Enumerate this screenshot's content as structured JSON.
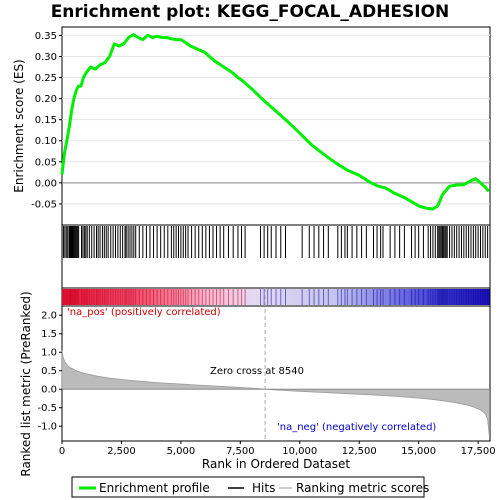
{
  "chart_data": {
    "type": "line",
    "title": "Enrichment plot: KEGG_FOCAL_ADHESION",
    "xlabel": "Rank in Ordered Dataset",
    "xlim": [
      0,
      18000
    ],
    "x_ticks": [
      0,
      2500,
      5000,
      7500,
      10000,
      12500,
      15000,
      17500
    ],
    "x_tick_labels": [
      "0",
      "2,500",
      "5,000",
      "7,500",
      "10,000",
      "12,500",
      "15,000",
      "17,500"
    ],
    "enrichment_panel": {
      "ylabel": "Enrichment score (ES)",
      "ylim": [
        -0.1,
        0.37
      ],
      "y_ticks": [
        -0.05,
        0.0,
        0.05,
        0.1,
        0.15,
        0.2,
        0.25,
        0.3,
        0.35
      ],
      "y_tick_labels": [
        "-0.05",
        "0.00",
        "0.05",
        "0.10",
        "0.15",
        "0.20",
        "0.25",
        "0.30",
        "0.35"
      ],
      "series": [
        {
          "name": "Enrichment profile",
          "color": "#00ee00",
          "x": [
            0,
            100,
            200,
            300,
            400,
            500,
            600,
            700,
            800,
            900,
            1000,
            1200,
            1400,
            1600,
            1800,
            2000,
            2200,
            2400,
            2600,
            2800,
            3000,
            3200,
            3400,
            3600,
            3800,
            4000,
            4200,
            4400,
            4600,
            4800,
            5000,
            5200,
            5400,
            5600,
            5800,
            6000,
            6200,
            6400,
            6600,
            6800,
            7000,
            7200,
            7400,
            7600,
            7800,
            8000,
            8500,
            9000,
            9500,
            10000,
            10500,
            11000,
            11500,
            12000,
            12500,
            13000,
            13300,
            13600,
            14000,
            14400,
            14800,
            15000,
            15300,
            15600,
            15800,
            16000,
            16300,
            16600,
            16900,
            17200,
            17400,
            17600,
            17800,
            17950
          ],
          "y": [
            0.02,
            0.07,
            0.1,
            0.13,
            0.17,
            0.2,
            0.22,
            0.23,
            0.23,
            0.25,
            0.26,
            0.275,
            0.27,
            0.28,
            0.285,
            0.3,
            0.33,
            0.325,
            0.33,
            0.345,
            0.352,
            0.345,
            0.34,
            0.35,
            0.345,
            0.348,
            0.345,
            0.345,
            0.342,
            0.34,
            0.34,
            0.333,
            0.325,
            0.32,
            0.315,
            0.31,
            0.3,
            0.29,
            0.283,
            0.275,
            0.268,
            0.26,
            0.25,
            0.242,
            0.232,
            0.222,
            0.195,
            0.17,
            0.145,
            0.118,
            0.09,
            0.068,
            0.048,
            0.03,
            0.018,
            0.0,
            -0.008,
            -0.012,
            -0.025,
            -0.035,
            -0.048,
            -0.055,
            -0.06,
            -0.062,
            -0.055,
            -0.028,
            -0.008,
            -0.005,
            -0.004,
            0.005,
            0.01,
            0.0,
            -0.01,
            -0.02
          ]
        }
      ]
    },
    "hits": {
      "name": "Hits",
      "color": "#000000",
      "positions": [
        60,
        120,
        180,
        240,
        300,
        330,
        360,
        390,
        420,
        460,
        500,
        540,
        580,
        620,
        660,
        700,
        820,
        880,
        940,
        1000,
        1060,
        1150,
        1250,
        1350,
        1450,
        1520,
        1600,
        1700,
        1780,
        1860,
        1940,
        2050,
        2150,
        2250,
        2350,
        2450,
        2550,
        2650,
        2700,
        2780,
        2860,
        2940,
        3020,
        3100,
        3250,
        3400,
        3550,
        3700,
        3850,
        4000,
        4150,
        4300,
        4450,
        4600,
        4700,
        4800,
        4900,
        5000,
        5100,
        5200,
        5300,
        5450,
        5600,
        5750,
        5900,
        6050,
        6200,
        6350,
        6500,
        6650,
        6800,
        7000,
        7200,
        7400,
        7550,
        7700,
        8350,
        8500,
        8650,
        8800,
        9000,
        9200,
        9400,
        10100,
        10400,
        10600,
        10800,
        11000,
        11200,
        11600,
        11750,
        11900,
        12000,
        12200,
        12400,
        12600,
        12800,
        13100,
        13250,
        13400,
        13500,
        13800,
        14000,
        14200,
        14400,
        14700,
        14850,
        15000,
        15200,
        15400,
        15500,
        15600,
        15700,
        15800,
        15850,
        15900,
        15950,
        16000,
        16050,
        16100,
        16150,
        16200,
        16300,
        16400,
        16500,
        16600,
        16700,
        16800,
        16900,
        17000,
        17100,
        17200,
        17300,
        17400,
        17500,
        17600,
        17700,
        17800,
        17900
      ]
    },
    "ranking_panel": {
      "name": "Ranking metric scores",
      "ylabel": "Ranked list metric (PreRanked)",
      "ylim": [
        -1.4,
        2.25
      ],
      "y_ticks": [
        -1.0,
        -0.5,
        0.0,
        0.5,
        1.0,
        1.5,
        2.0
      ],
      "y_tick_labels": [
        "-1.0",
        "-0.5",
        "0.0",
        "0.5",
        "1.0",
        "1.5",
        "2.0"
      ],
      "color": "#bbbbbb",
      "curve_x": [
        0,
        50,
        150,
        300,
        600,
        1000,
        1500,
        2000,
        3000,
        4000,
        5000,
        6000,
        7000,
        8000,
        8540,
        9000,
        10000,
        11000,
        12000,
        13000,
        14000,
        15000,
        15500,
        16000,
        16500,
        17000,
        17300,
        17600,
        17800,
        17900,
        17980
      ],
      "curve_y": [
        1.05,
        0.85,
        0.7,
        0.6,
        0.5,
        0.42,
        0.35,
        0.3,
        0.23,
        0.18,
        0.14,
        0.1,
        0.065,
        0.03,
        0.0,
        -0.02,
        -0.06,
        -0.09,
        -0.12,
        -0.15,
        -0.19,
        -0.24,
        -0.27,
        -0.31,
        -0.36,
        -0.42,
        -0.48,
        -0.56,
        -0.66,
        -0.8,
        -1.3
      ],
      "zero_cross": 8540,
      "zero_cross_label": "Zero cross at 8540",
      "pos_label": "'na_pos' (positively correlated)",
      "neg_label": "'na_neg' (negatively correlated)"
    },
    "legend": {
      "placement": "bottom",
      "entries": [
        "Enrichment profile",
        "Hits",
        "Ranking metric scores"
      ]
    }
  }
}
